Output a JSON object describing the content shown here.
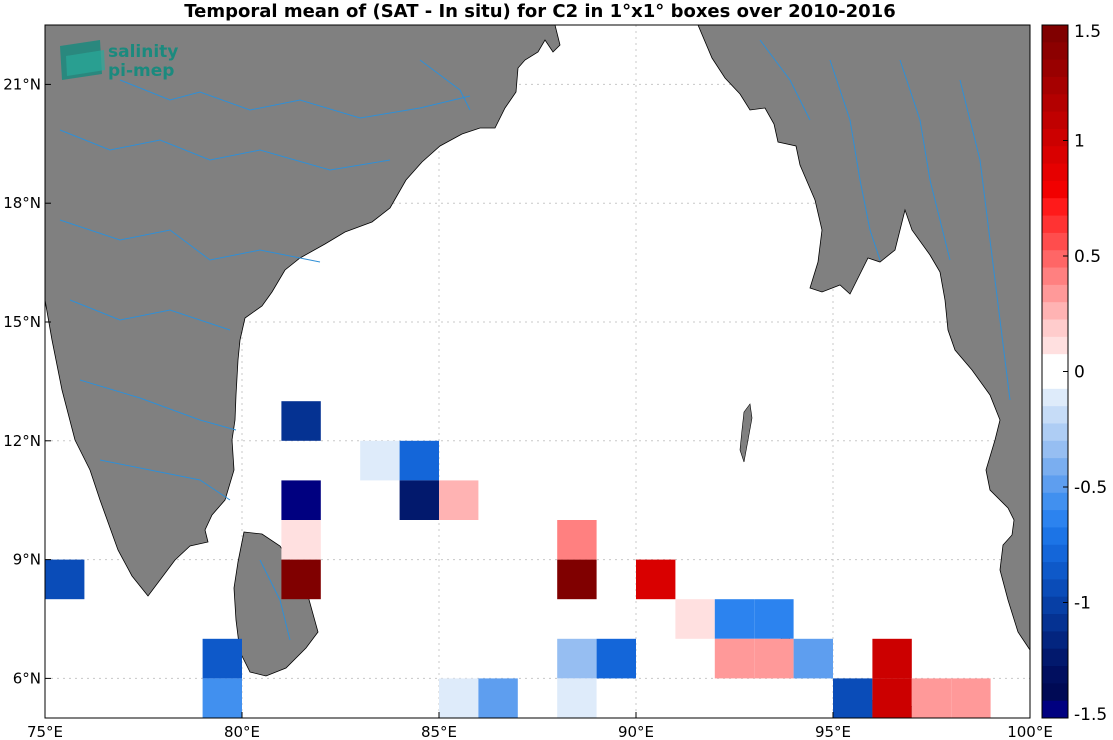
{
  "title": "Temporal mean of (SAT - In situ) for C2 in 1°x1° boxes over 2010-2016",
  "logo": {
    "line1": "salinity",
    "line2": "pi-mep",
    "color": "#1b8a7e"
  },
  "map": {
    "lon_range": [
      75,
      100
    ],
    "lat_range": [
      5,
      22.5
    ],
    "land_color": "#808080",
    "river_color": "#2f8fd6",
    "grid": true,
    "lon_ticks": [
      {
        "lon": 75,
        "label": "75°E"
      },
      {
        "lon": 80,
        "label": "80°E"
      },
      {
        "lon": 85,
        "label": "85°E"
      },
      {
        "lon": 90,
        "label": "90°E"
      },
      {
        "lon": 95,
        "label": "95°E"
      },
      {
        "lon": 100,
        "label": "100°E"
      }
    ],
    "lat_ticks": [
      {
        "lat": 6,
        "label": "6°N"
      },
      {
        "lat": 9,
        "label": "9°N"
      },
      {
        "lat": 12,
        "label": "12°N"
      },
      {
        "lat": 15,
        "label": "15°N"
      },
      {
        "lat": 18,
        "label": "18°N"
      },
      {
        "lat": 21,
        "label": "21°N"
      }
    ]
  },
  "colorbar": {
    "range": [
      -1.5,
      1.5
    ],
    "tick_values": [
      1.5,
      1,
      0.5,
      0,
      -0.5,
      -1,
      -1.5
    ],
    "tick_labels": [
      "1.5",
      "1",
      "0.5",
      "0",
      "-0.5",
      "-1",
      "-1.5"
    ],
    "colors_top_to_bottom": [
      "#800000",
      "#8c0000",
      "#990000",
      "#a60000",
      "#b30000",
      "#c00000",
      "#cc0000",
      "#d90000",
      "#e60000",
      "#f20000",
      "#ff1a1a",
      "#ff3333",
      "#ff4d4d",
      "#ff6666",
      "#ff8080",
      "#ff9999",
      "#ffb3b3",
      "#ffcccc",
      "#ffe0e0",
      "#ffffff",
      "#ffffff",
      "#deebfa",
      "#c6dcf7",
      "#aecdf4",
      "#96bef2",
      "#7aaef0",
      "#5e9eef",
      "#4190ef",
      "#2c83ef",
      "#1c74e6",
      "#1466d9",
      "#0e59c9",
      "#0a4cb8",
      "#073fa5",
      "#053292",
      "#03257f",
      "#02196d",
      "#010f5f",
      "#000a55",
      "#000080"
    ]
  },
  "chart_data": {
    "type": "heatmap",
    "title": "Temporal mean of (SAT - In situ) for C2 in 1°x1° boxes over 2010-2016",
    "xlabel": "",
    "ylabel": "",
    "cell_size_deg": 1,
    "value_range": [
      -1.5,
      1.5
    ],
    "cells": [
      {
        "lon": 81.5,
        "lat": 12.5,
        "value": -1.05
      },
      {
        "lon": 83.5,
        "lat": 11.5,
        "value": -0.15
      },
      {
        "lon": 84.5,
        "lat": 11.5,
        "value": -0.75
      },
      {
        "lon": 81.5,
        "lat": 10.5,
        "value": -1.5
      },
      {
        "lon": 84.5,
        "lat": 10.5,
        "value": -1.2
      },
      {
        "lon": 85.5,
        "lat": 10.5,
        "value": 0.25
      },
      {
        "lon": 81.5,
        "lat": 9.5,
        "value": 0.1
      },
      {
        "lon": 88.5,
        "lat": 9.5,
        "value": 0.45
      },
      {
        "lon": 75.5,
        "lat": 8.5,
        "value": -0.95
      },
      {
        "lon": 81.5,
        "lat": 8.5,
        "value": 1.5
      },
      {
        "lon": 88.5,
        "lat": 8.5,
        "value": 1.5
      },
      {
        "lon": 90.5,
        "lat": 8.5,
        "value": 0.95
      },
      {
        "lon": 91.5,
        "lat": 7.5,
        "value": 0.12
      },
      {
        "lon": 92.5,
        "lat": 7.5,
        "value": -0.6
      },
      {
        "lon": 93.5,
        "lat": 7.5,
        "value": -0.6
      },
      {
        "lon": 79.5,
        "lat": 6.5,
        "value": -0.85
      },
      {
        "lon": 88.5,
        "lat": 6.5,
        "value": -0.3
      },
      {
        "lon": 89.5,
        "lat": 6.5,
        "value": -0.75
      },
      {
        "lon": 92.5,
        "lat": 6.5,
        "value": 0.3
      },
      {
        "lon": 93.5,
        "lat": 6.5,
        "value": 0.3
      },
      {
        "lon": 94.5,
        "lat": 6.5,
        "value": -0.45
      },
      {
        "lon": 96.5,
        "lat": 6.5,
        "value": 1.0
      },
      {
        "lon": 79.5,
        "lat": 5.5,
        "value": -0.55
      },
      {
        "lon": 85.5,
        "lat": 5.5,
        "value": -0.15
      },
      {
        "lon": 86.5,
        "lat": 5.5,
        "value": -0.5
      },
      {
        "lon": 88.5,
        "lat": 5.5,
        "value": -0.15
      },
      {
        "lon": 95.5,
        "lat": 5.5,
        "value": -0.95
      },
      {
        "lon": 96.5,
        "lat": 5.5,
        "value": 1.0
      },
      {
        "lon": 97.5,
        "lat": 5.5,
        "value": 0.3
      },
      {
        "lon": 98.5,
        "lat": 5.5,
        "value": 0.3
      }
    ]
  }
}
